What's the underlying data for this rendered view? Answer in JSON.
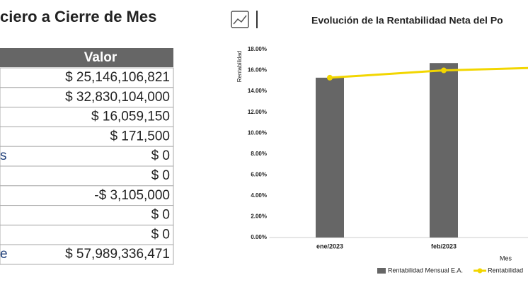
{
  "table_panel": {
    "title": "ciero a Cierre de Mes",
    "header": "Valor",
    "rows": [
      {
        "value": "$ 25,146,106,821"
      },
      {
        "value": "$ 32,830,104,000"
      },
      {
        "value": "$ 16,059,150"
      },
      {
        "value": "$ 171,500"
      },
      {
        "label": "s",
        "value": "$ 0"
      },
      {
        "value": "$ 0"
      },
      {
        "value": "-$ 3,105,000"
      },
      {
        "value": "$ 0"
      },
      {
        "value": "$ 0"
      },
      {
        "label": "e",
        "value": "$ 57,989,336,471"
      }
    ]
  },
  "chart_data": {
    "type": "bar",
    "title": "Evolución de la Rentabilidad Neta del Po",
    "y_label": "Rentabilidad",
    "x_label": "Mes",
    "categories": [
      "ene/2023",
      "feb/2023",
      null
    ],
    "series": [
      {
        "name": "Rentabilidad Mensual E.A.",
        "type": "bar",
        "color": "#666666",
        "values": [
          15.3,
          16.7,
          null
        ]
      },
      {
        "name": "Rentabilidad",
        "type": "line",
        "color": "#f2d600",
        "values": [
          15.3,
          16.0,
          16.3
        ]
      }
    ],
    "ylim": [
      0,
      18
    ],
    "yticks": [
      {
        "value": 0,
        "label": "0.00%"
      },
      {
        "value": 2,
        "label": "2.00%"
      },
      {
        "value": 4,
        "label": "4.00%"
      },
      {
        "value": 6,
        "label": "6.00%"
      },
      {
        "value": 8,
        "label": "8.00%"
      },
      {
        "value": 10,
        "label": "10.00%"
      },
      {
        "value": 12,
        "label": "12.00%"
      },
      {
        "value": 14,
        "label": "14.00%"
      },
      {
        "value": 16,
        "label": "16.00%"
      },
      {
        "value": 18,
        "label": "18.00%"
      }
    ],
    "grid": false
  }
}
